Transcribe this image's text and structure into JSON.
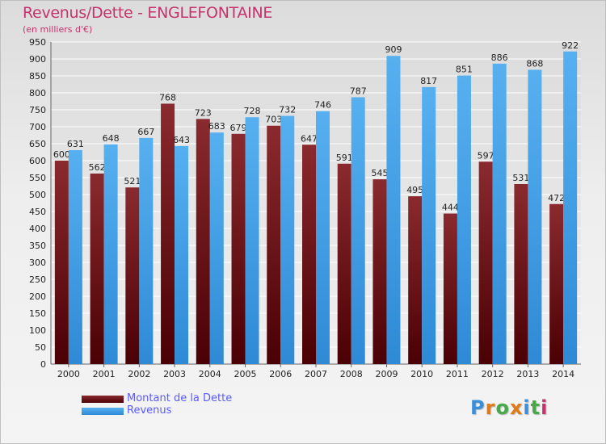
{
  "title": "Revenus/Dette - ENGLEFONTAINE",
  "subtitle": "(en milliers d'€)",
  "logo_text": "Proxiti",
  "colors": {
    "title": "#c4336b",
    "debt_bar": "#6b0c12",
    "revenue_bar": "#3f9fe6",
    "legend_text": "#5a5aff",
    "grid": "#ffffff"
  },
  "chart_data": {
    "type": "bar",
    "title": "Revenus/Dette - ENGLEFONTAINE",
    "subtitle": "(en milliers d'€)",
    "xlabel": "",
    "ylabel": "",
    "ylim": [
      0,
      950
    ],
    "ytick_step": 50,
    "grid": true,
    "legend_position": "bottom-left",
    "categories": [
      "2000",
      "2001",
      "2002",
      "2003",
      "2004",
      "2005",
      "2006",
      "2007",
      "2008",
      "2009",
      "2010",
      "2011",
      "2012",
      "2013",
      "2014"
    ],
    "series": [
      {
        "name": "Montant de la Dette",
        "values": [
          600,
          562,
          521,
          768,
          723,
          679,
          703,
          647,
          591,
          545,
          495,
          444,
          597,
          531,
          472
        ]
      },
      {
        "name": "Revenus",
        "values": [
          631,
          648,
          667,
          643,
          683,
          728,
          732,
          746,
          787,
          909,
          817,
          851,
          886,
          868,
          922
        ]
      }
    ]
  }
}
